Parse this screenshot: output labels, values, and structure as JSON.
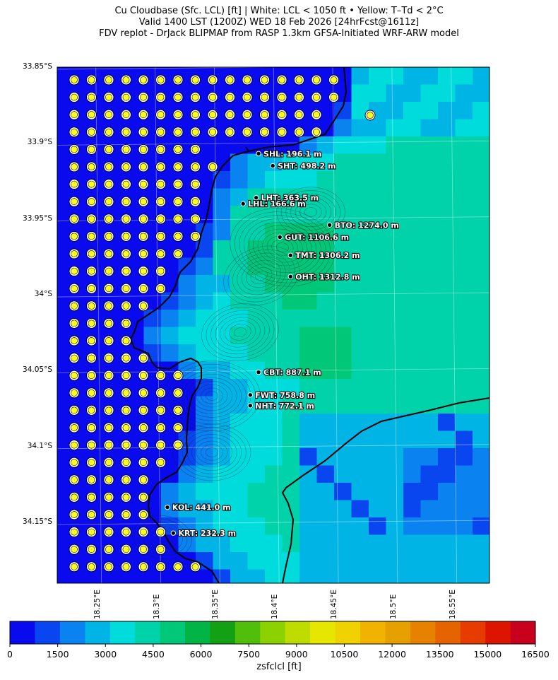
{
  "header": {
    "line1": "Cu Cloudbase (Sfc. LCL) [ft]  |  White: LCL < 1050 ft • Yellow: T–Td < 2°C",
    "line2": "Valid 1400 LST (1200Z) WED 18 Feb 2026 [24hrFcst@1611z]",
    "line3": "FDV replot - DrJack BLIPMAP from RASP 1.3km GFSA-Initiated WRF-ARW model"
  },
  "map": {
    "lat_range": [
      -34.19,
      -33.85
    ],
    "lon_range": [
      18.215,
      18.58
    ],
    "lat_ticks": [
      "33.85°S",
      "33.9°S",
      "33.95°S",
      "34°S",
      "34.05°S",
      "34.1°S",
      "34.15°S"
    ],
    "lon_ticks": [
      "18.25°E",
      "18.3°E",
      "18.35°E",
      "18.4°E",
      "18.45°E",
      "18.5°E",
      "18.55°E"
    ],
    "sites": [
      {
        "code": "SHL",
        "label": "SHL: 196.1 m",
        "lat": -33.907,
        "lon": 18.385
      },
      {
        "code": "SHT",
        "label": "SHT: 498.2 m",
        "lat": -33.915,
        "lon": 18.397
      },
      {
        "code": "LHT",
        "label": "LHT: 363.5 m",
        "lat": -33.936,
        "lon": 18.383
      },
      {
        "code": "LHL",
        "label": "LHL: 166.6 m",
        "lat": -33.94,
        "lon": 18.372
      },
      {
        "code": "BTO",
        "label": "BTO: 1274.0 m",
        "lat": -33.954,
        "lon": 18.445
      },
      {
        "code": "GUT",
        "label": "GUT: 1106.6 m",
        "lat": -33.962,
        "lon": 18.403
      },
      {
        "code": "TMT",
        "label": "TMT: 1306.2 m",
        "lat": -33.974,
        "lon": 18.412
      },
      {
        "code": "OHT",
        "label": "OHT: 1312.8 m",
        "lat": -33.988,
        "lon": 18.412
      },
      {
        "code": "CBT",
        "label": "CBT: 887.1 m",
        "lat": -34.051,
        "lon": 18.385
      },
      {
        "code": "FWT",
        "label": "FWT: 758.8 m",
        "lat": -34.066,
        "lon": 18.378
      },
      {
        "code": "NHT",
        "label": "NHT: 772.1 m",
        "lat": -34.073,
        "lon": 18.378
      },
      {
        "code": "KOL",
        "label": "KOL: 441.0 m",
        "lat": -34.14,
        "lon": 18.308
      },
      {
        "code": "KRT",
        "label": "KRT: 232.3 m",
        "lat": -34.157,
        "lon": 18.313
      }
    ]
  },
  "colorbar": {
    "label": "zsfclcl [ft]",
    "ticks": [
      "0",
      "1500",
      "3000",
      "4500",
      "6000",
      "7500",
      "9000",
      "10500",
      "12000",
      "13500",
      "15000",
      "16500"
    ],
    "colors": [
      "#0a0aee",
      "#0a46f0",
      "#0a82f0",
      "#00b4e6",
      "#00dcdc",
      "#00d2aa",
      "#00c878",
      "#00b446",
      "#14a014",
      "#50be0a",
      "#8cd200",
      "#bedc00",
      "#e6e600",
      "#f0d200",
      "#f0b400",
      "#e6a000",
      "#e68200",
      "#e66400",
      "#e63c00",
      "#dc1400",
      "#c8001e"
    ]
  },
  "legend_colors": {
    "white_marker": "#ffffff",
    "yellow_marker": "#ffff1e",
    "coastline": "#000000"
  }
}
